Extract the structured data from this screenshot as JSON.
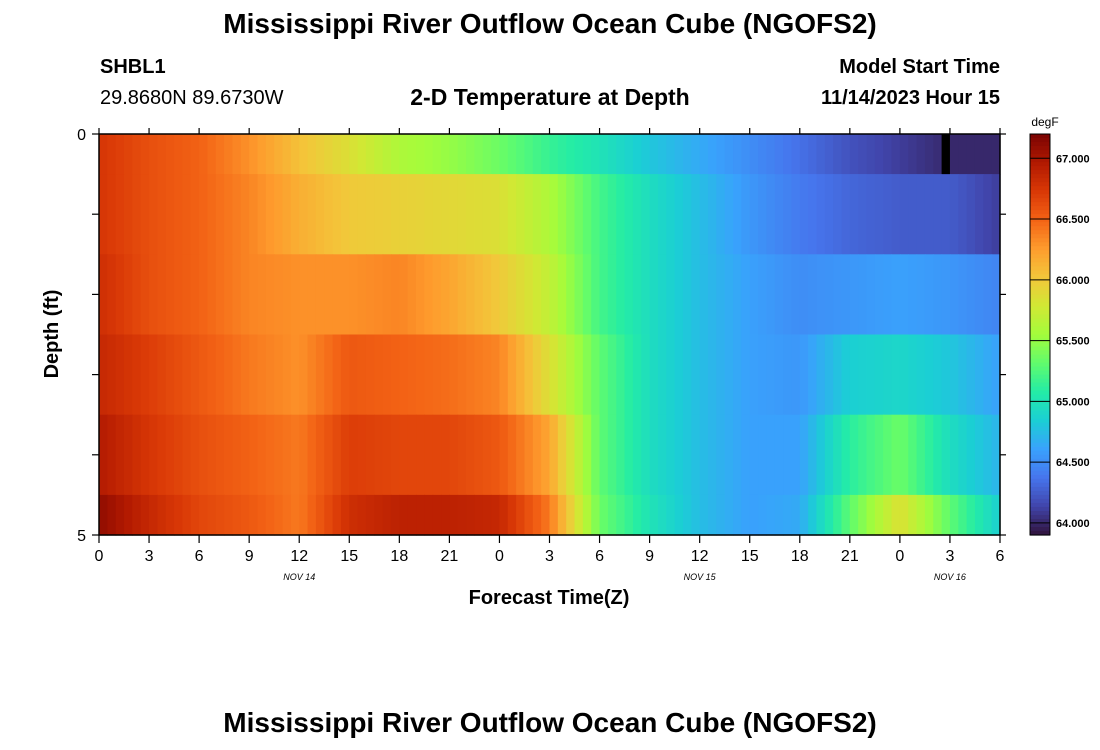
{
  "header": {
    "title": "Mississippi River Outflow Ocean Cube (NGOFS2)",
    "station_id": "SHBL1",
    "station_coords": "29.8680N  89.6730W",
    "subtitle": "2-D Temperature at Depth",
    "model_start_label": "Model Start Time",
    "model_start_value": "11/14/2023 Hour 15"
  },
  "footer": {
    "title": "Mississippi River Outflow Ocean Cube (NGOFS2)"
  },
  "chart_data": {
    "type": "heatmap",
    "xlabel": "Forecast Time(Z)",
    "ylabel": "Depth (ft)",
    "colorbar_label": "degF",
    "x_range_hours": [
      0,
      54
    ],
    "x_ticks": [
      "0",
      "3",
      "6",
      "9",
      "12",
      "15",
      "18",
      "21",
      "0",
      "3",
      "6",
      "9",
      "12",
      "15",
      "18",
      "21",
      "0",
      "3",
      "6"
    ],
    "date_labels": [
      {
        "label": "NOV 14",
        "at_hour": 12
      },
      {
        "label": "NOV 15",
        "at_hour": 36
      },
      {
        "label": "NOV 16",
        "at_hour": 51
      }
    ],
    "y_range_ft": [
      0,
      5
    ],
    "y_tick_labels": [
      "0",
      "5"
    ],
    "y_ticks_ft": [
      0,
      1,
      2,
      3,
      4,
      5
    ],
    "layer_bounds_ft": [
      0,
      0.5,
      1.5,
      2.5,
      3.5,
      4.5,
      5
    ],
    "color_range_degF": [
      63.9,
      67.2
    ],
    "colorbar_ticks": [
      "64.000",
      "64.500",
      "65.000",
      "65.500",
      "66.000",
      "66.500",
      "67.000"
    ],
    "colormap": [
      "#30123b",
      "#4145ab",
      "#4675ed",
      "#39a2fc",
      "#1bcfd4",
      "#24eca6",
      "#61fc6c",
      "#a4fc3b",
      "#d1e834",
      "#f3c63a",
      "#fe9b2d",
      "#f36315",
      "#d93806",
      "#b11901",
      "#7a0402"
    ],
    "time_keys_hours": [
      0,
      3,
      6,
      9,
      12,
      15,
      18,
      21,
      24,
      27,
      30,
      33,
      36,
      39,
      42,
      45,
      48,
      51,
      54
    ],
    "layers": [
      {
        "depth_ft": 0,
        "temps_degF": [
          66.75,
          66.6,
          66.5,
          66.3,
          66.05,
          65.85,
          65.6,
          65.5,
          65.35,
          65.15,
          65.0,
          64.8,
          64.65,
          64.5,
          64.35,
          64.2,
          64.1,
          64.0,
          64.0
        ]
      },
      {
        "depth_ft": 1,
        "temps_degF": [
          66.75,
          66.6,
          66.5,
          66.35,
          66.15,
          66.0,
          65.95,
          65.9,
          65.85,
          65.6,
          65.2,
          64.95,
          64.75,
          64.55,
          64.4,
          64.3,
          64.25,
          64.25,
          64.1
        ]
      },
      {
        "depth_ft": 2,
        "temps_degF": [
          66.8,
          66.6,
          66.5,
          66.35,
          66.3,
          66.3,
          66.35,
          66.2,
          66.0,
          65.7,
          65.2,
          64.95,
          64.75,
          64.6,
          64.5,
          64.55,
          64.6,
          64.55,
          64.45
        ]
      },
      {
        "depth_ft": 3,
        "temps_degF": [
          66.85,
          66.7,
          66.55,
          66.4,
          66.3,
          66.55,
          66.5,
          66.45,
          66.35,
          65.85,
          65.3,
          64.95,
          64.75,
          64.6,
          64.55,
          64.85,
          64.9,
          64.8,
          64.6
        ]
      },
      {
        "depth_ft": 4,
        "temps_degF": [
          66.95,
          66.75,
          66.6,
          66.5,
          66.4,
          66.7,
          66.65,
          66.65,
          66.55,
          66.2,
          65.3,
          64.95,
          64.75,
          64.6,
          64.6,
          65.1,
          65.35,
          64.95,
          64.7
        ]
      },
      {
        "depth_ft": 5,
        "temps_degF": [
          67.1,
          66.85,
          66.65,
          66.55,
          66.4,
          66.8,
          66.9,
          66.9,
          66.85,
          66.4,
          65.35,
          65.0,
          64.75,
          64.6,
          64.65,
          65.3,
          65.85,
          65.3,
          64.85
        ]
      }
    ],
    "missing_data": {
      "depth_ft": 0,
      "hour_from": 50.5,
      "hour_to": 51
    },
    "grid": false,
    "legend": "colorbar-right"
  }
}
